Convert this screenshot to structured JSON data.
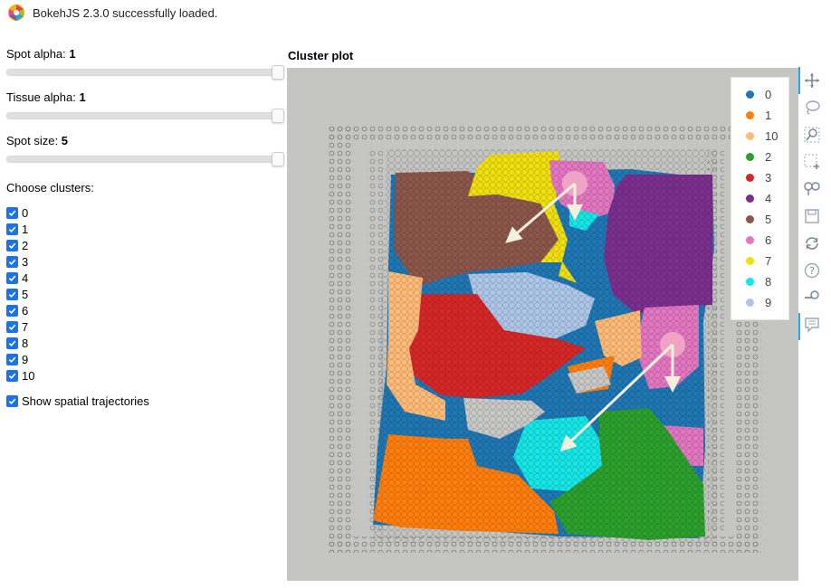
{
  "banner": {
    "text": "BokehJS 2.3.0 successfully loaded."
  },
  "sliders": [
    {
      "label": "Spot alpha: ",
      "value": "1"
    },
    {
      "label": "Tissue alpha: ",
      "value": "1"
    },
    {
      "label": "Spot size: ",
      "value": "5"
    }
  ],
  "clusters_label": "Choose clusters:",
  "cluster_checkboxes": [
    "0",
    "1",
    "2",
    "3",
    "4",
    "5",
    "6",
    "7",
    "8",
    "9",
    "10"
  ],
  "trajectory_label": "Show spatial trajectories",
  "plot": {
    "title": "Cluster plot"
  },
  "legend": [
    {
      "label": "0",
      "color": "#1f77b4"
    },
    {
      "label": "1",
      "color": "#ff7f0e"
    },
    {
      "label": "10",
      "color": "#ffbb78"
    },
    {
      "label": "2",
      "color": "#2ca02c"
    },
    {
      "label": "3",
      "color": "#d62728"
    },
    {
      "label": "4",
      "color": "#7a2f8e"
    },
    {
      "label": "5",
      "color": "#8c564b"
    },
    {
      "label": "6",
      "color": "#e377c2"
    },
    {
      "label": "7",
      "color": "#f0e010"
    },
    {
      "label": "8",
      "color": "#17e6e6"
    },
    {
      "label": "9",
      "color": "#aec7e8"
    }
  ],
  "toolbar": [
    "pan-icon",
    "lasso-select-icon",
    "box-zoom-icon",
    "box-select-icon",
    "link-icon",
    "save-icon",
    "reset-icon",
    "help-icon",
    "wheel-zoom-icon",
    "hover-icon"
  ]
}
